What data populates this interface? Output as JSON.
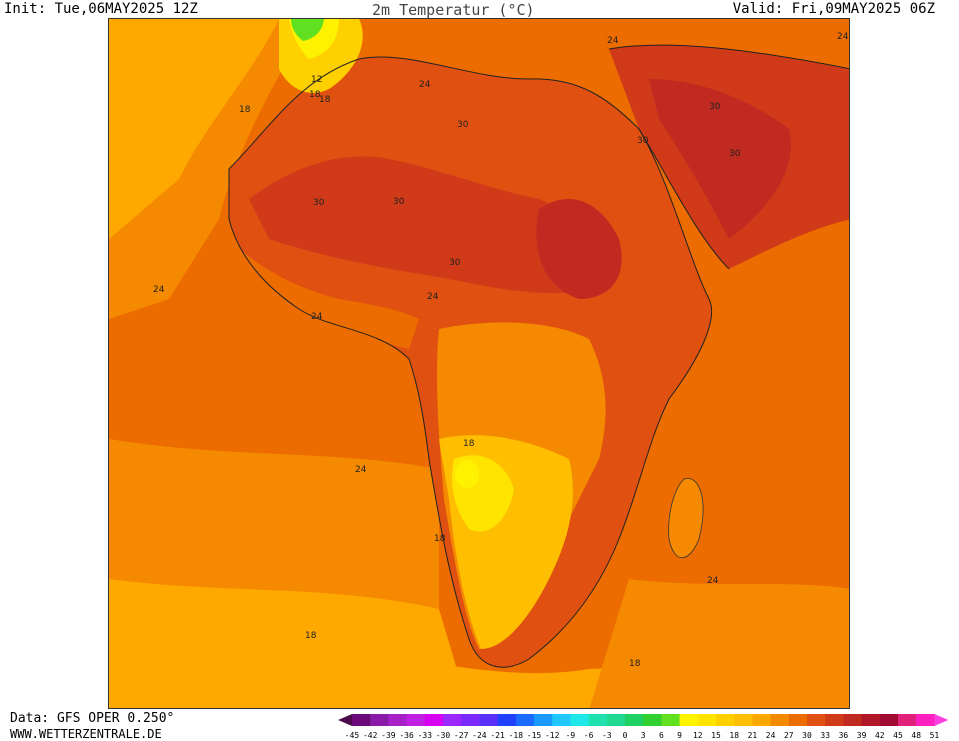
{
  "header": {
    "init": "Init: Tue,06MAY2025 12Z",
    "title": "2m Temperatur (°C)",
    "valid": "Valid: Fri,09MAY2025 06Z"
  },
  "footer": {
    "data": "Data: GFS OPER 0.250°",
    "site": "WWW.WETTERZENTRALE.DE"
  },
  "legend": {
    "ticks": [
      "-45",
      "-42",
      "-39",
      "-36",
      "-33",
      "-30",
      "-27",
      "-24",
      "-21",
      "-18",
      "-15",
      "-12",
      "-9",
      "-6",
      "-3",
      "0",
      "3",
      "6",
      "9",
      "12",
      "15",
      "18",
      "21",
      "24",
      "27",
      "30",
      "33",
      "36",
      "39",
      "42",
      "45",
      "48",
      "51"
    ],
    "colors": [
      "#4a0a4a",
      "#6a0a7a",
      "#8a1aa8",
      "#a820c8",
      "#c020e0",
      "#d800f0",
      "#9a28ff",
      "#7a2aff",
      "#5a30ff",
      "#2040ff",
      "#1a6aff",
      "#1a9aff",
      "#20c8ff",
      "#20e8e8",
      "#20e0b0",
      "#20d890",
      "#20d060",
      "#30d030",
      "#60e020",
      "#fff200",
      "#ffe400",
      "#ffd000",
      "#ffbe00",
      "#ffa800",
      "#f58a00",
      "#ec6c00",
      "#e05010",
      "#d03a18",
      "#c02a20",
      "#b01828",
      "#a00a30",
      "#e0207a",
      "#ff20c0",
      "#ff40e0"
    ]
  },
  "map": {
    "contour_labels": [
      "30",
      "30",
      "30",
      "30",
      "30",
      "30",
      "30",
      "24",
      "24",
      "24",
      "24",
      "24",
      "24",
      "24",
      "24",
      "18",
      "18",
      "18",
      "18",
      "18",
      "18",
      "18",
      "12"
    ]
  }
}
